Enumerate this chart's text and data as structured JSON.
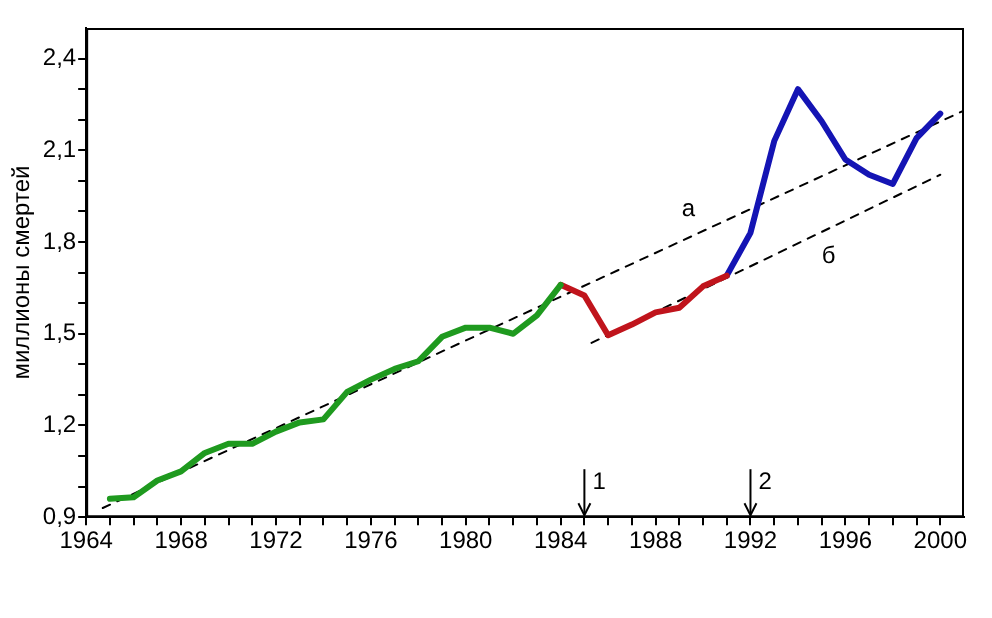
{
  "chart_data": {
    "type": "line",
    "ylabel": "миллионы смертей",
    "xlim": [
      1964,
      2001
    ],
    "ylim": [
      0.9,
      2.5
    ],
    "xticks": [
      1964,
      {
        "value": 1965,
        "label": null
      },
      {
        "value": 1966,
        "label": null
      },
      {
        "value": 1967,
        "label": null
      },
      1968,
      {
        "value": 1969,
        "label": null
      },
      {
        "value": 1970,
        "label": null
      },
      {
        "value": 1971,
        "label": null
      },
      1972,
      {
        "value": 1973,
        "label": null
      },
      {
        "value": 1974,
        "label": null
      },
      {
        "value": 1975,
        "label": null
      },
      1976,
      {
        "value": 1977,
        "label": null
      },
      {
        "value": 1978,
        "label": null
      },
      {
        "value": 1979,
        "label": null
      },
      1980,
      {
        "value": 1981,
        "label": null
      },
      {
        "value": 1982,
        "label": null
      },
      {
        "value": 1983,
        "label": null
      },
      1984,
      {
        "value": 1985,
        "label": null
      },
      {
        "value": 1986,
        "label": null
      },
      {
        "value": 1987,
        "label": null
      },
      1988,
      {
        "value": 1989,
        "label": null
      },
      {
        "value": 1990,
        "label": null
      },
      {
        "value": 1991,
        "label": null
      },
      1992,
      {
        "value": 1993,
        "label": null
      },
      {
        "value": 1994,
        "label": null
      },
      {
        "value": 1995,
        "label": null
      },
      1996,
      {
        "value": 1997,
        "label": null
      },
      {
        "value": 1998,
        "label": null
      },
      {
        "value": 1999,
        "label": null
      },
      2000
    ],
    "yticks": [
      {
        "value": 0.9,
        "label": "0,9"
      },
      {
        "value": 1.0,
        "label": null
      },
      {
        "value": 1.1,
        "label": null
      },
      {
        "value": 1.2,
        "label": "1,2"
      },
      {
        "value": 1.3,
        "label": null
      },
      {
        "value": 1.4,
        "label": null
      },
      {
        "value": 1.5,
        "label": "1,5"
      },
      {
        "value": 1.6,
        "label": null
      },
      {
        "value": 1.7,
        "label": null
      },
      {
        "value": 1.8,
        "label": "1,8"
      },
      {
        "value": 1.9,
        "label": null
      },
      {
        "value": 2.0,
        "label": null
      },
      {
        "value": 2.1,
        "label": "2,1"
      },
      {
        "value": 2.2,
        "label": null
      },
      {
        "value": 2.3,
        "label": null
      },
      {
        "value": 2.4,
        "label": "2,4"
      }
    ],
    "grid": false,
    "legend": false,
    "marker": "none",
    "series": [
      {
        "color": "#1f9a1f",
        "x": [
          1965,
          1966,
          1967,
          1968,
          1969,
          1970,
          1971,
          1972,
          1973,
          1974,
          1975,
          1976,
          1977,
          1978,
          1979,
          1980,
          1981,
          1982,
          1983,
          1984
        ],
        "values": [
          0.96,
          0.965,
          1.02,
          1.05,
          1.11,
          1.14,
          1.14,
          1.18,
          1.21,
          1.22,
          1.31,
          1.35,
          1.385,
          1.41,
          1.49,
          1.52,
          1.52,
          1.5,
          1.56,
          1.66
        ]
      },
      {
        "color": "#c0141c",
        "x": [
          1984,
          1985,
          1986,
          1987,
          1988,
          1989,
          1990,
          1991
        ],
        "values": [
          1.66,
          1.625,
          1.495,
          1.53,
          1.57,
          1.585,
          1.655,
          1.69
        ]
      },
      {
        "color": "#1414b4",
        "x": [
          1991,
          1992,
          1993,
          1994,
          1995,
          1996,
          1997,
          1998,
          1999,
          2000
        ],
        "values": [
          1.69,
          1.83,
          2.13,
          2.3,
          2.195,
          2.07,
          2.02,
          1.99,
          2.14,
          2.22
        ]
      },
      {
        "name": "а",
        "color": "#000000",
        "line_style": "dashed",
        "x": [
          1964.7,
          2001
        ],
        "values": [
          0.93,
          2.23
        ]
      },
      {
        "name": "б",
        "color": "#000000",
        "line_style": "dashed",
        "x": [
          1985.3,
          2000
        ],
        "values": [
          1.47,
          2.02
        ]
      }
    ],
    "ref_lines": [
      {
        "axis": "x",
        "value": 1985
      },
      {
        "axis": "x",
        "value": 1992
      }
    ],
    "annotations": [
      "1",
      "2"
    ]
  }
}
